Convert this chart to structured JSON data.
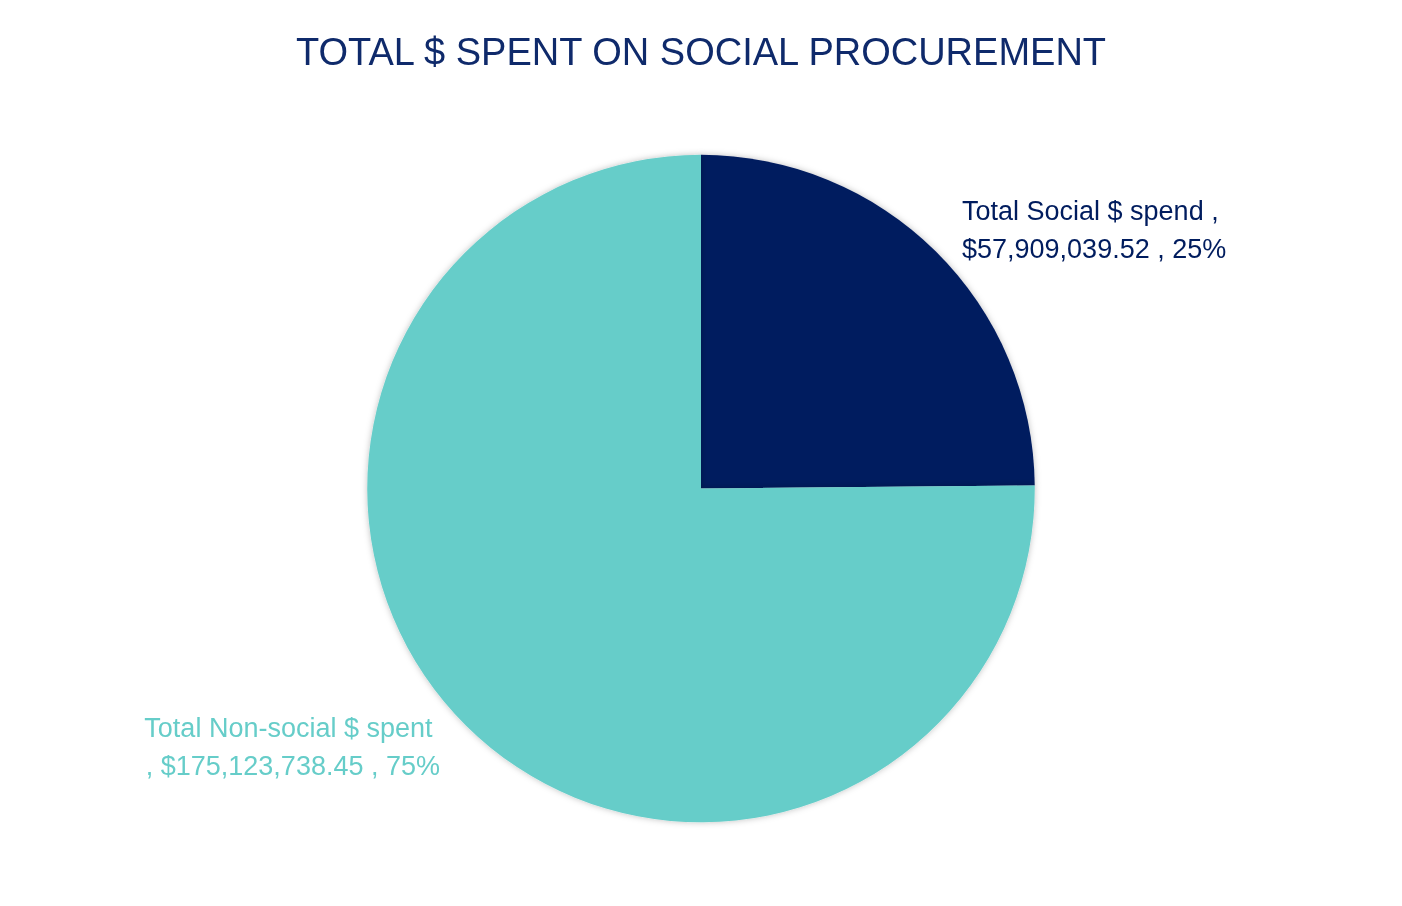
{
  "chart_data": {
    "type": "pie",
    "title": "TOTAL $ SPENT ON SOCIAL PROCUREMENT",
    "categories": [
      "Total Social $ spend",
      "Total Non-social $ spent"
    ],
    "values": [
      57909039.52,
      175123738.45
    ],
    "colors": [
      "#001c5e",
      "#66cdc9"
    ],
    "value_labels": [
      ", $57,909,039.52 , 25%",
      ", $175,123,738.45 , 75%"
    ],
    "legend": false
  }
}
